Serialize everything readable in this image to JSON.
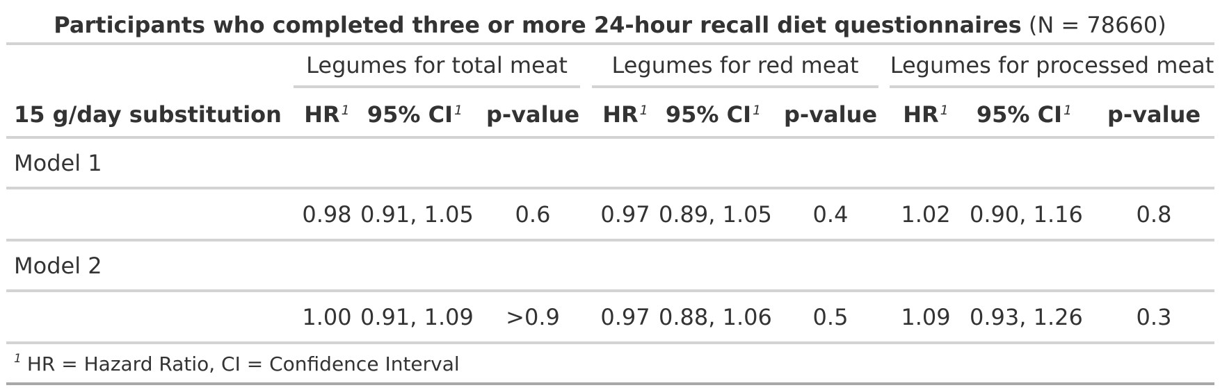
{
  "title": {
    "bold": "Participants who completed three or more 24-hour recall diet questionnaires",
    "normal": "(N = 78660)"
  },
  "spanners": [
    "Legumes for total meat",
    "Legumes for red meat",
    "Legumes for processed meat"
  ],
  "stub_header": "15 g/day substitution",
  "column_headers": {
    "hr": "HR",
    "ci": "95% CI",
    "p": "p-value",
    "footnote_mark": "1"
  },
  "groups": [
    {
      "label": "Model 1",
      "row": [
        "0.98",
        "0.91, 1.05",
        "0.6",
        "0.97",
        "0.89, 1.05",
        "0.4",
        "1.02",
        "0.90, 1.16",
        "0.8"
      ]
    },
    {
      "label": "Model 2",
      "row": [
        "1.00",
        "0.91, 1.09",
        ">0.9",
        "0.97",
        "0.88, 1.06",
        "0.5",
        "1.09",
        "0.93, 1.26",
        "0.3"
      ]
    }
  ],
  "footnote": {
    "mark": "1",
    "text": "HR = Hazard Ratio, CI = Confidence Interval"
  },
  "colors": {
    "text": "#333333",
    "rule": "#d3d3d3",
    "bottom_rule": "#a8a8a8"
  }
}
